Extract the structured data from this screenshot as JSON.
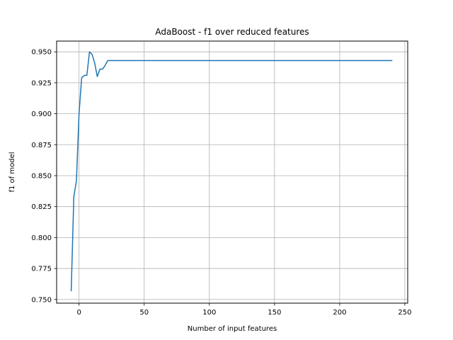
{
  "chart_data": {
    "type": "line",
    "title": "AdaBoost - f1 over reduced features",
    "xlabel": "Number of input features",
    "ylabel": "f1 of model",
    "xlim": [
      -17.2,
      252.2
    ],
    "ylim": [
      0.747,
      0.9587
    ],
    "xticks": [
      0,
      50,
      100,
      150,
      200,
      250
    ],
    "xtick_labels": [
      "0",
      "50",
      "100",
      "150",
      "200",
      "250"
    ],
    "yticks": [
      0.75,
      0.775,
      0.8,
      0.825,
      0.85,
      0.875,
      0.9,
      0.925,
      0.95
    ],
    "ytick_labels": [
      "0.750",
      "0.775",
      "0.800",
      "0.825",
      "0.850",
      "0.875",
      "0.900",
      "0.925",
      "0.950"
    ],
    "grid": true,
    "series": [
      {
        "color": "#1f77b4",
        "x": [
          -6,
          -4,
          -2,
          0,
          2,
          4,
          6,
          8,
          10,
          12,
          14,
          16,
          18,
          20,
          22,
          240
        ],
        "y": [
          0.757,
          0.833,
          0.846,
          0.9,
          0.929,
          0.931,
          0.931,
          0.95,
          0.948,
          0.941,
          0.93,
          0.936,
          0.936,
          0.939,
          0.943,
          0.943
        ]
      }
    ]
  }
}
